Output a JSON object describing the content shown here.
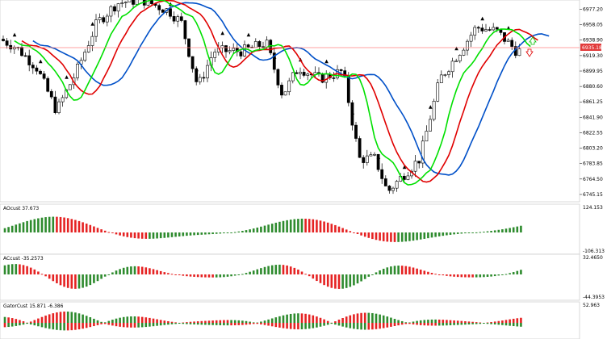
{
  "main_chart": {
    "price_ticks": [
      "6977.20",
      "6958.05",
      "6938.90",
      "6919.30",
      "6899.95",
      "6880.60",
      "6861.25",
      "6841.90",
      "6822.55",
      "6803.20",
      "6783.85",
      "6764.50",
      "6745.15"
    ],
    "current_price": "6935.18",
    "price_range": [
      6738,
      6985
    ],
    "colors": {
      "bull": "#2e8b2e",
      "bear": "#000000",
      "ma_fast": "#00e000",
      "ma_mid": "#e00000",
      "ma_slow": "#0050c8",
      "price_line": "#ff8080",
      "arrow_up": "#00c000",
      "arrow_down": "#e00000"
    }
  },
  "indicators": [
    {
      "label": "AOcust 37.673",
      "scale_top": "124.153",
      "scale_bottom": "-106.313"
    },
    {
      "label": "ACcust -35.2573",
      "scale_top": "32.4650",
      "scale_bottom": "-44.3953"
    },
    {
      "label": "GatorCust 15.871 -6.386",
      "scale_top": "52.963",
      "scale_bottom": ""
    }
  ]
}
